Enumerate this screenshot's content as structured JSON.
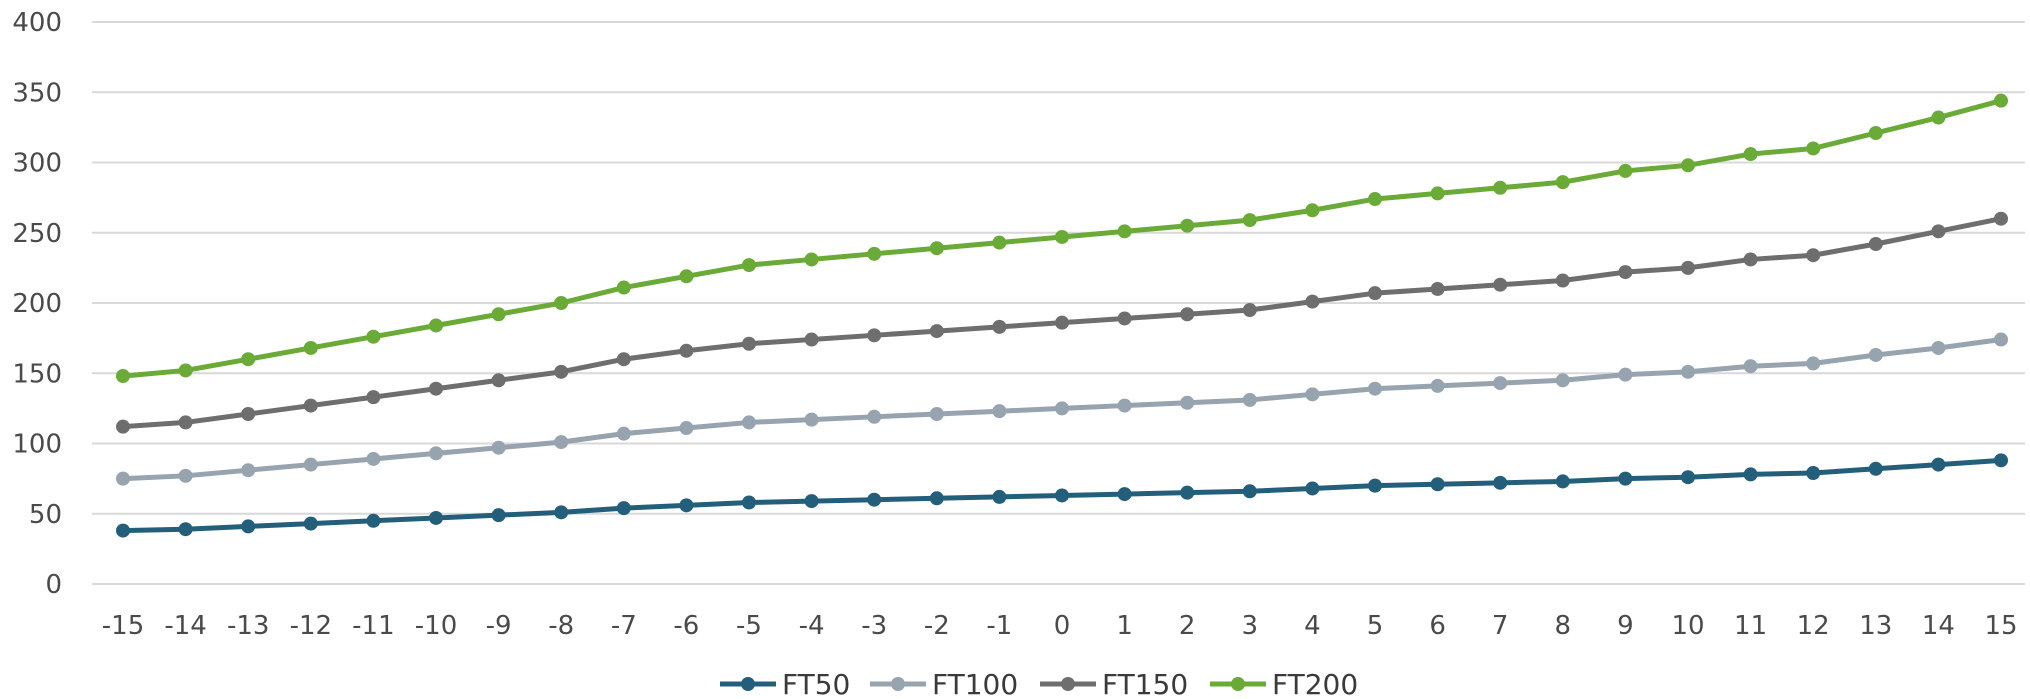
{
  "chart_data": {
    "type": "line",
    "title": "",
    "xlabel": "",
    "ylabel": "",
    "ylim": [
      0,
      400
    ],
    "yticks": [
      0,
      50,
      100,
      150,
      200,
      250,
      300,
      350,
      400
    ],
    "grid": true,
    "legend_position": "bottom",
    "categories": [
      "-15",
      "-14",
      "-13",
      "-12",
      "-11",
      "-10",
      "-9",
      "-8",
      "-7",
      "-6",
      "-5",
      "-4",
      "-3",
      "-2",
      "-1",
      "0",
      "1",
      "2",
      "3",
      "4",
      "5",
      "6",
      "7",
      "8",
      "9",
      "10",
      "11",
      "12",
      "13",
      "14",
      "15"
    ],
    "series": [
      {
        "name": "FT50",
        "color": "#235f7a",
        "values": [
          38,
          39,
          41,
          43,
          45,
          47,
          49,
          51,
          54,
          56,
          58,
          59,
          60,
          61,
          62,
          63,
          64,
          65,
          66,
          68,
          70,
          71,
          72,
          73,
          75,
          76,
          78,
          79,
          82,
          85,
          88
        ]
      },
      {
        "name": "FT100",
        "color": "#97a3ae",
        "values": [
          75,
          77,
          81,
          85,
          89,
          93,
          97,
          101,
          107,
          111,
          115,
          117,
          119,
          121,
          123,
          125,
          127,
          129,
          131,
          135,
          139,
          141,
          143,
          145,
          149,
          151,
          155,
          157,
          163,
          168,
          174
        ]
      },
      {
        "name": "FT150",
        "color": "#6e6e6e",
        "values": [
          112,
          115,
          121,
          127,
          133,
          139,
          145,
          151,
          160,
          166,
          171,
          174,
          177,
          180,
          183,
          186,
          189,
          192,
          195,
          201,
          207,
          210,
          213,
          216,
          222,
          225,
          231,
          234,
          242,
          251,
          260
        ]
      },
      {
        "name": "FT200",
        "color": "#6aaa37",
        "values": [
          148,
          152,
          160,
          168,
          176,
          184,
          192,
          200,
          211,
          219,
          227,
          231,
          235,
          239,
          243,
          247,
          251,
          255,
          259,
          266,
          274,
          278,
          282,
          286,
          294,
          298,
          306,
          310,
          321,
          332,
          344
        ]
      }
    ]
  }
}
